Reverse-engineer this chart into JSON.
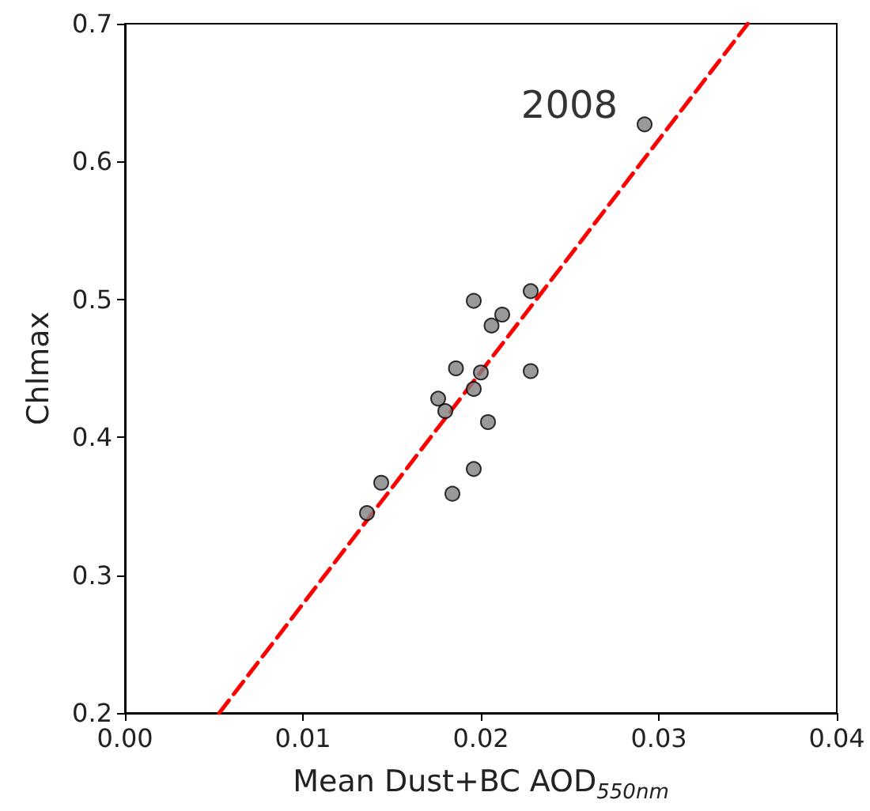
{
  "chart_data": {
    "type": "scatter",
    "xlabel": "Mean Dust+BC AOD$_{550nm}$",
    "ylabel": "Chlmax",
    "xlim": [
      0,
      0.04
    ],
    "xticks": [
      {
        "value": 0,
        "label": "0.00"
      },
      {
        "value": 0.01,
        "label": "0.01"
      },
      {
        "value": 0.02,
        "label": "0.02"
      },
      {
        "value": 0.03,
        "label": "0.03"
      },
      {
        "value": 0.04,
        "label": "0.04"
      }
    ],
    "ylim": [
      0.2,
      0.7
    ],
    "yticks": [
      0.2,
      0.3,
      0.4,
      0.5,
      0.6,
      0.7
    ],
    "grid": false,
    "series": [
      {
        "color": "#808080",
        "marker": "circle",
        "x": [
          0.0292,
          0.0228,
          0.0196,
          0.0212,
          0.0206,
          0.0186,
          0.02,
          0.0228,
          0.0196,
          0.0176,
          0.018,
          0.0204,
          0.0196,
          0.0144,
          0.0184,
          0.0136
        ],
        "values": [
          0.627,
          0.506,
          0.499,
          0.489,
          0.481,
          0.45,
          0.447,
          0.448,
          0.435,
          0.428,
          0.419,
          0.411,
          0.377,
          0.367,
          0.359,
          0.345
        ]
      },
      {
        "type": "line",
        "color": "#ff0000",
        "line_style": "dashed",
        "marker": "none",
        "x": [
          0.0053,
          0.035
        ],
        "values": [
          0.2,
          0.7
        ]
      }
    ],
    "annotations": [
      {
        "text": "2008",
        "x": 0.0292,
        "y": 0.627
      }
    ]
  }
}
